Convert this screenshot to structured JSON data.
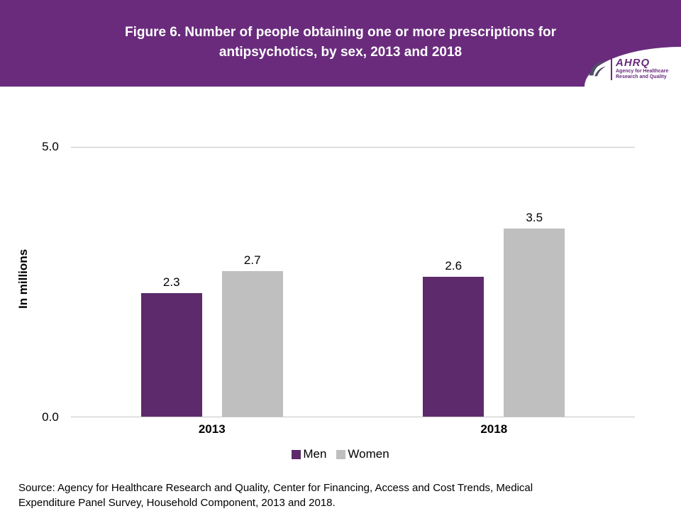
{
  "header": {
    "title_line1": "Figure 6. Number of people obtaining one or more prescriptions for",
    "title_line2": "antipsychotics, by sex, 2013 and 2018",
    "bg_color": "#6a2b7d",
    "logo": {
      "org_abbr": "AHRQ",
      "org_name_line1": "Agency for Healthcare",
      "org_name_line2": "Research and Quality"
    }
  },
  "chart_data": {
    "type": "bar",
    "title": "Figure 6. Number of people obtaining one or more prescriptions for antipsychotics, by sex, 2013 and 2018",
    "categories": [
      "2013",
      "2018"
    ],
    "series": [
      {
        "name": "Men",
        "color": "#5d2a6b",
        "values": [
          2.3,
          2.6
        ]
      },
      {
        "name": "Women",
        "color": "#bfbfbf",
        "values": [
          2.7,
          3.5
        ]
      }
    ],
    "xlabel": "",
    "ylabel": "In millions",
    "ylim": [
      0,
      5
    ],
    "yticks": [
      "5.0",
      "0.0"
    ],
    "grid": "top-gridline-and-baseline-only",
    "legend_position": "bottom-center",
    "value_labels": "above-bars, one decimal place"
  },
  "footer": {
    "source_text": "Source: Agency for Healthcare Research and Quality, Center for Financing, Access and Cost Trends, Medical Expenditure Panel Survey, Household Component, 2013 and 2018."
  }
}
